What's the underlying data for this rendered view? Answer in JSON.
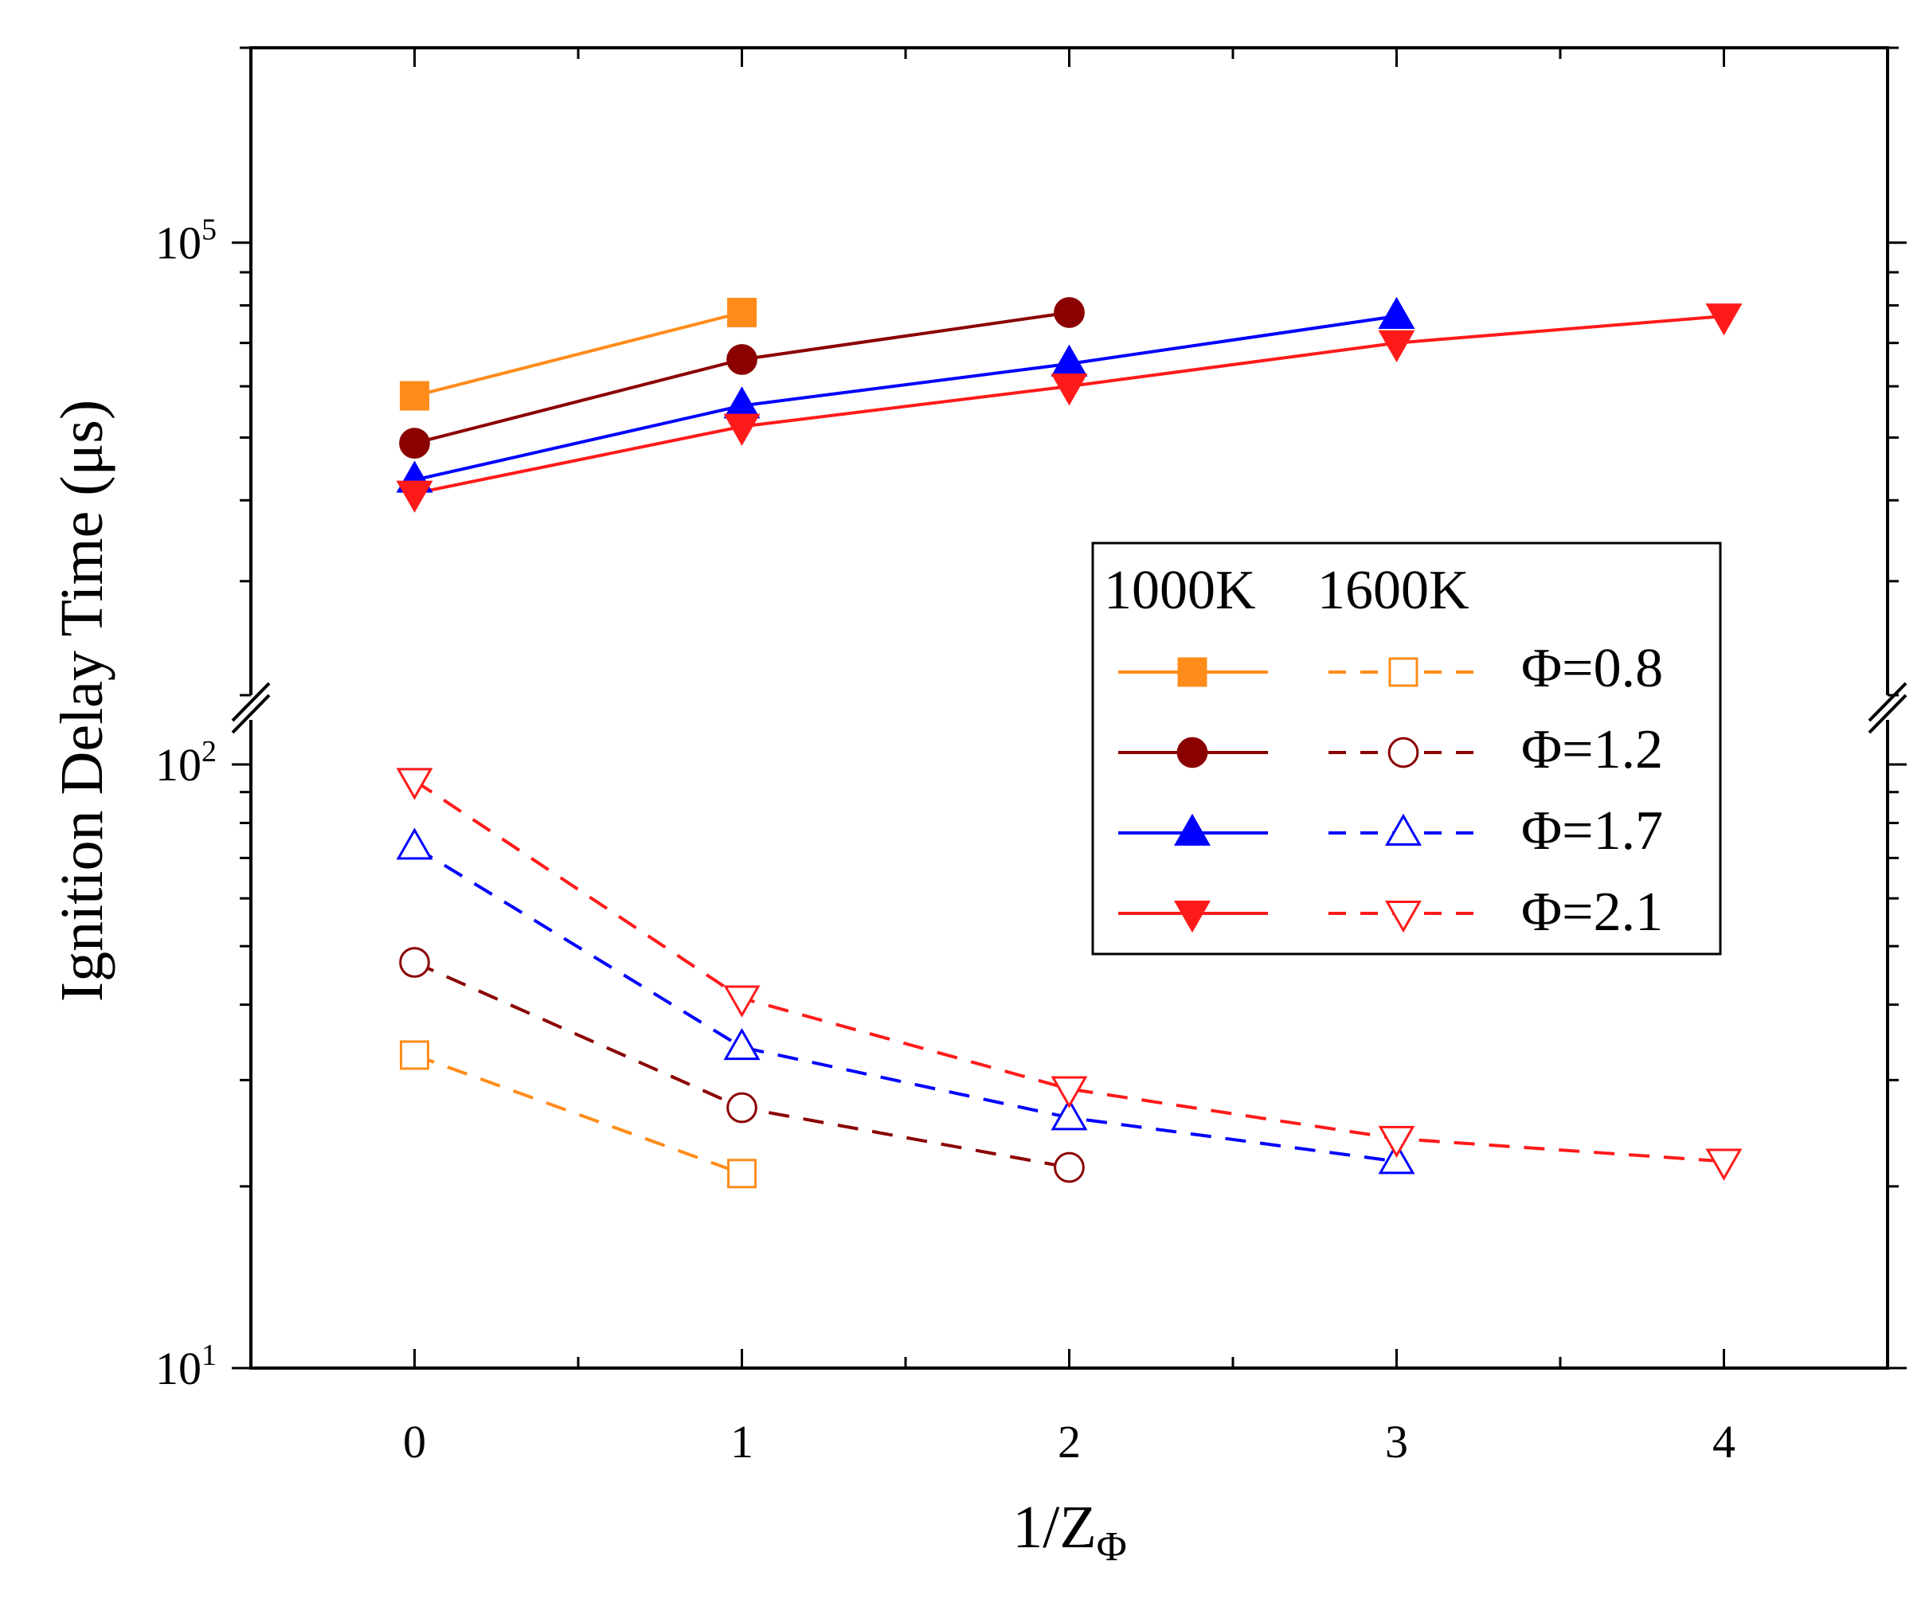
{
  "chart_data": {
    "type": "line",
    "title": "",
    "xlabel": "1/Z",
    "xlabel_subscript": "Φ",
    "ylabel": "Ignition Delay Time (μs)",
    "x_ticks": [
      "0",
      "1",
      "2",
      "3",
      "4"
    ],
    "xlim": [
      -0.5,
      4.5
    ],
    "y_scale": "log-broken",
    "y_ticks_upper": [
      {
        "base": "10",
        "exp": "5"
      }
    ],
    "y_ticks_lower": [
      {
        "base": "10",
        "exp": "2"
      },
      {
        "base": "10",
        "exp": "1"
      }
    ],
    "ylim_upper": [
      20000,
      200000
    ],
    "ylim_lower": [
      10,
      100
    ],
    "legend": {
      "placement": "center-right",
      "headers": [
        "1000K",
        "1600K"
      ],
      "labels": [
        "Φ=0.8",
        "Φ=1.2",
        "Φ=1.7",
        "Φ=2.1"
      ]
    },
    "series": [
      {
        "name": "Φ=0.8 1000K",
        "color": "#ff8c1a",
        "marker": "square",
        "filled": true,
        "dash": false,
        "x": [
          0,
          1
        ],
        "values": [
          58000,
          78000
        ]
      },
      {
        "name": "Φ=1.2 1000K",
        "color": "#8b0000",
        "marker": "circle",
        "filled": true,
        "dash": false,
        "x": [
          0,
          1,
          2
        ],
        "values": [
          49000,
          66000,
          78000
        ]
      },
      {
        "name": "Φ=1.7 1000K",
        "color": "#0000ff",
        "marker": "triangle-up",
        "filled": true,
        "dash": false,
        "x": [
          0,
          1,
          2,
          3
        ],
        "values": [
          43000,
          56000,
          65000,
          77000
        ]
      },
      {
        "name": "Φ=2.1 1000K",
        "color": "#ff1a1a",
        "marker": "triangle-down",
        "filled": true,
        "dash": false,
        "x": [
          0,
          1,
          2,
          3,
          4
        ],
        "values": [
          41000,
          52000,
          60000,
          70000,
          77000
        ]
      },
      {
        "name": "Φ=0.8 1600K",
        "color": "#ff8c1a",
        "marker": "square",
        "filled": false,
        "dash": true,
        "x": [
          0,
          1
        ],
        "values": [
          33,
          21
        ]
      },
      {
        "name": "Φ=1.2 1600K",
        "color": "#8b0000",
        "marker": "circle",
        "filled": false,
        "dash": true,
        "x": [
          0,
          1,
          2
        ],
        "values": [
          47,
          27,
          21.5
        ]
      },
      {
        "name": "Φ=1.7 1600K",
        "color": "#0000ff",
        "marker": "triangle-up",
        "filled": false,
        "dash": true,
        "x": [
          0,
          1,
          2,
          3
        ],
        "values": [
          73,
          34,
          26,
          22
        ]
      },
      {
        "name": "Φ=2.1 1600K",
        "color": "#ff1a1a",
        "marker": "triangle-down",
        "filled": false,
        "dash": true,
        "x": [
          0,
          1,
          2,
          3,
          4
        ],
        "values": [
          94,
          41,
          29,
          24,
          22
        ]
      }
    ]
  }
}
